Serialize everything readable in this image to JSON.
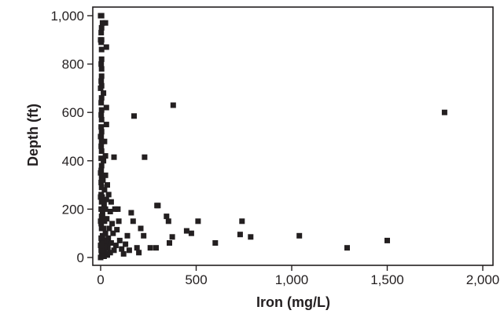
{
  "chart_data": {
    "type": "scatter",
    "xlabel": "Iron (mg/L)",
    "ylabel": "Depth (ft)",
    "xlim": [
      0,
      2000
    ],
    "ylim": [
      0,
      1000
    ],
    "xticks": [
      0,
      500,
      1000,
      1500,
      2000
    ],
    "yticks": [
      0,
      200,
      400,
      600,
      800,
      1000
    ],
    "xtick_labels": [
      "0",
      "500",
      "1,000",
      "1,500",
      "2,000"
    ],
    "ytick_labels": [
      "0",
      "200",
      "400",
      "600",
      "800",
      "1,000"
    ],
    "grid": false,
    "legend": false,
    "marker_color": "#231f20",
    "marker_shape": "square",
    "points": [
      [
        1800,
        600
      ],
      [
        1500,
        70
      ],
      [
        1290,
        40
      ],
      [
        1040,
        90
      ],
      [
        785,
        85
      ],
      [
        740,
        150
      ],
      [
        730,
        95
      ],
      [
        600,
        60
      ],
      [
        510,
        150
      ],
      [
        475,
        100
      ],
      [
        450,
        110
      ],
      [
        380,
        630
      ],
      [
        375,
        85
      ],
      [
        360,
        60
      ],
      [
        355,
        150
      ],
      [
        345,
        170
      ],
      [
        300,
        215
      ],
      [
        295,
        215
      ],
      [
        290,
        40
      ],
      [
        260,
        40
      ],
      [
        230,
        415
      ],
      [
        225,
        90
      ],
      [
        210,
        120
      ],
      [
        200,
        20
      ],
      [
        190,
        40
      ],
      [
        175,
        585
      ],
      [
        170,
        150
      ],
      [
        160,
        185
      ],
      [
        150,
        30
      ],
      [
        140,
        90
      ],
      [
        130,
        55
      ],
      [
        120,
        15
      ],
      [
        110,
        35
      ],
      [
        100,
        70
      ],
      [
        95,
        150
      ],
      [
        90,
        200
      ],
      [
        85,
        115
      ],
      [
        80,
        50
      ],
      [
        75,
        200
      ],
      [
        70,
        415
      ],
      [
        70,
        30
      ],
      [
        65,
        100
      ],
      [
        60,
        140
      ],
      [
        55,
        230
      ],
      [
        55,
        60
      ],
      [
        50,
        190
      ],
      [
        50,
        20
      ],
      [
        45,
        120
      ],
      [
        42,
        260
      ],
      [
        40,
        80
      ],
      [
        38,
        40
      ],
      [
        35,
        300
      ],
      [
        35,
        10
      ],
      [
        32,
        160
      ],
      [
        30,
        870
      ],
      [
        30,
        620
      ],
      [
        30,
        550
      ],
      [
        30,
        240
      ],
      [
        30,
        60
      ],
      [
        28,
        15
      ],
      [
        25,
        970
      ],
      [
        25,
        420
      ],
      [
        25,
        340
      ],
      [
        25,
        200
      ],
      [
        25,
        100
      ],
      [
        22,
        30
      ],
      [
        20,
        480
      ],
      [
        20,
        280
      ],
      [
        20,
        150
      ],
      [
        20,
        45
      ],
      [
        18,
        220
      ],
      [
        18,
        5
      ],
      [
        15,
        680
      ],
      [
        15,
        400
      ],
      [
        15,
        120
      ],
      [
        15,
        70
      ],
      [
        12,
        320
      ],
      [
        12,
        20
      ],
      [
        10,
        970
      ],
      [
        10,
        180
      ],
      [
        10,
        90
      ],
      [
        8,
        250
      ],
      [
        8,
        40
      ],
      [
        5,
        1000
      ],
      [
        5,
        950
      ],
      [
        5,
        900
      ],
      [
        5,
        860
      ],
      [
        5,
        820
      ],
      [
        5,
        780
      ],
      [
        5,
        750
      ],
      [
        5,
        710
      ],
      [
        5,
        660
      ],
      [
        5,
        610
      ],
      [
        5,
        570
      ],
      [
        5,
        520
      ],
      [
        5,
        480
      ],
      [
        5,
        440
      ],
      [
        5,
        380
      ],
      [
        5,
        330
      ],
      [
        5,
        290
      ],
      [
        5,
        230
      ],
      [
        5,
        170
      ],
      [
        5,
        120
      ],
      [
        5,
        60
      ],
      [
        5,
        10
      ],
      [
        3,
        930
      ],
      [
        3,
        890
      ],
      [
        3,
        800
      ],
      [
        3,
        730
      ],
      [
        3,
        640
      ],
      [
        3,
        590
      ],
      [
        3,
        540
      ],
      [
        3,
        500
      ],
      [
        3,
        460
      ],
      [
        3,
        410
      ],
      [
        3,
        360
      ],
      [
        3,
        310
      ],
      [
        3,
        260
      ],
      [
        3,
        200
      ],
      [
        3,
        140
      ],
      [
        3,
        80
      ],
      [
        3,
        30
      ],
      [
        0,
        1000
      ],
      [
        0,
        900
      ],
      [
        0,
        700
      ],
      [
        0,
        500
      ],
      [
        0,
        350
      ],
      [
        0,
        250
      ],
      [
        0,
        150
      ],
      [
        0,
        50
      ],
      [
        0,
        0
      ]
    ]
  }
}
